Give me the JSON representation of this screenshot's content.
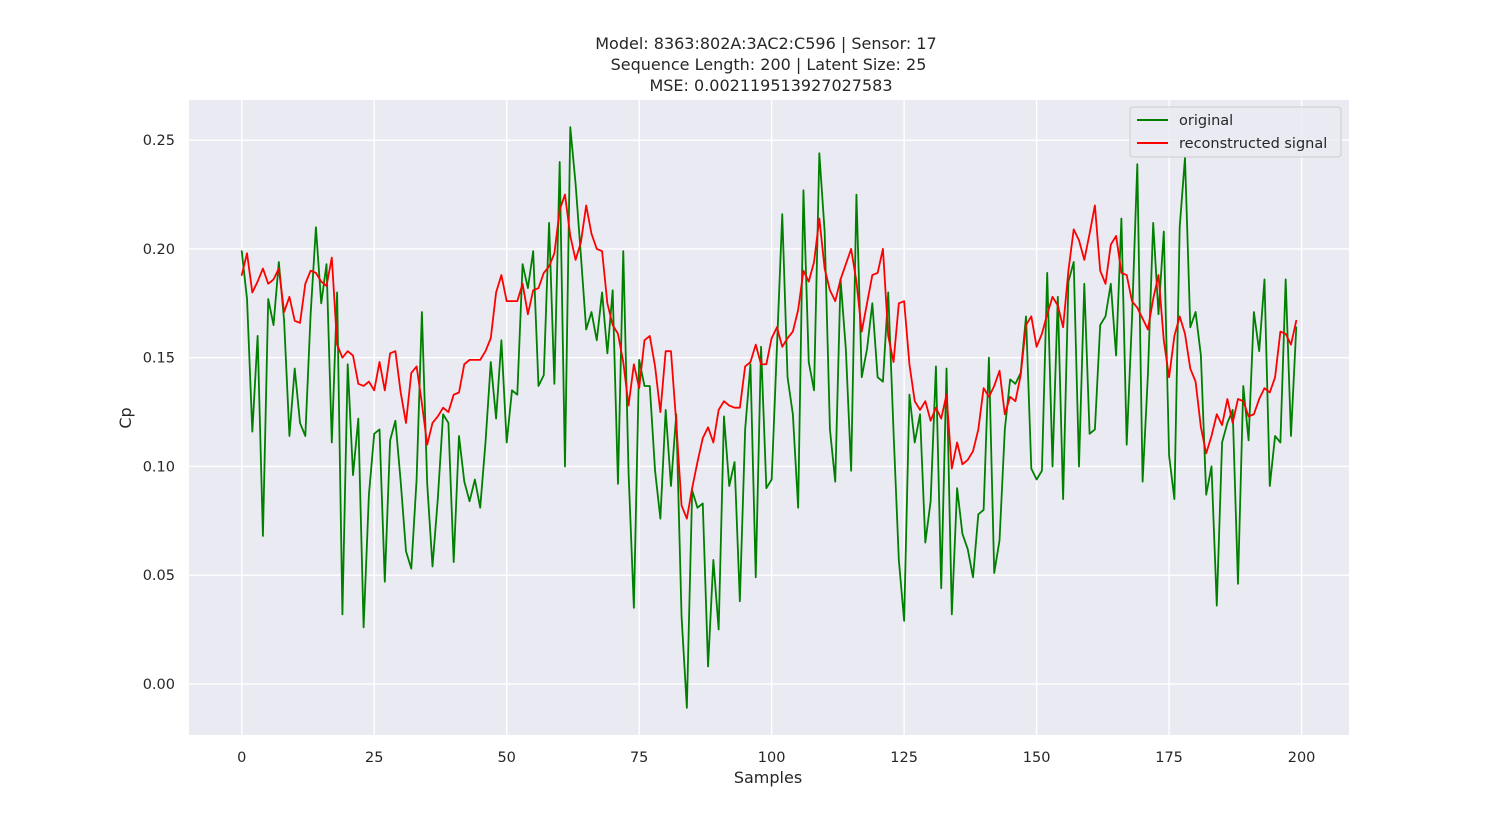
{
  "chart_data": {
    "type": "line",
    "title_lines": [
      "Model: 8363:802A:3AC2:C596 | Sensor: 17",
      "Sequence Length: 200 | Latent Size: 25",
      "MSE: 0.002119513927027583"
    ],
    "xlabel": "Samples",
    "ylabel": "Cp",
    "xlim": [
      -9.95,
      208.95
    ],
    "ylim": [
      -0.0235,
      0.2685
    ],
    "xticks": [
      0,
      25,
      50,
      75,
      100,
      125,
      150,
      175,
      200
    ],
    "xtick_labels": [
      "0",
      "25",
      "50",
      "75",
      "100",
      "125",
      "150",
      "175",
      "200"
    ],
    "yticks": [
      0.0,
      0.05,
      0.1,
      0.15,
      0.2,
      0.25
    ],
    "ytick_labels": [
      "0.00",
      "0.05",
      "0.10",
      "0.15",
      "0.20",
      "0.25"
    ],
    "grid": true,
    "background": "#eaeaf2",
    "legend_position": "top-right",
    "series": [
      {
        "name": "original",
        "color": "#008000",
        "values": [
          0.199,
          0.177,
          0.116,
          0.16,
          0.068,
          0.177,
          0.165,
          0.194,
          0.167,
          0.114,
          0.145,
          0.12,
          0.114,
          0.17,
          0.21,
          0.175,
          0.193,
          0.111,
          0.18,
          0.032,
          0.147,
          0.096,
          0.122,
          0.026,
          0.087,
          0.115,
          0.117,
          0.047,
          0.112,
          0.121,
          0.093,
          0.061,
          0.053,
          0.094,
          0.171,
          0.092,
          0.054,
          0.085,
          0.124,
          0.12,
          0.056,
          0.114,
          0.093,
          0.084,
          0.094,
          0.081,
          0.111,
          0.148,
          0.122,
          0.158,
          0.111,
          0.135,
          0.133,
          0.193,
          0.182,
          0.199,
          0.137,
          0.142,
          0.212,
          0.138,
          0.24,
          0.1,
          0.256,
          0.23,
          0.197,
          0.163,
          0.171,
          0.158,
          0.18,
          0.152,
          0.181,
          0.092,
          0.199,
          0.097,
          0.035,
          0.149,
          0.137,
          0.137,
          0.098,
          0.076,
          0.126,
          0.091,
          0.124,
          0.031,
          -0.011,
          0.089,
          0.081,
          0.083,
          0.008,
          0.057,
          0.025,
          0.123,
          0.091,
          0.102,
          0.038,
          0.117,
          0.147,
          0.049,
          0.155,
          0.09,
          0.094,
          0.155,
          0.216,
          0.141,
          0.124,
          0.081,
          0.227,
          0.148,
          0.135,
          0.244,
          0.208,
          0.117,
          0.093,
          0.186,
          0.154,
          0.098,
          0.225,
          0.141,
          0.154,
          0.175,
          0.141,
          0.139,
          0.18,
          0.116,
          0.057,
          0.029,
          0.133,
          0.111,
          0.124,
          0.065,
          0.084,
          0.146,
          0.044,
          0.145,
          0.032,
          0.09,
          0.069,
          0.062,
          0.049,
          0.078,
          0.08,
          0.15,
          0.051,
          0.066,
          0.117,
          0.14,
          0.138,
          0.143,
          0.169,
          0.099,
          0.094,
          0.098,
          0.189,
          0.1,
          0.178,
          0.085,
          0.185,
          0.194,
          0.1,
          0.184,
          0.115,
          0.117,
          0.165,
          0.169,
          0.184,
          0.151,
          0.214,
          0.11,
          0.168,
          0.239,
          0.093,
          0.142,
          0.212,
          0.17,
          0.208,
          0.105,
          0.085,
          0.21,
          0.242,
          0.164,
          0.171,
          0.151,
          0.087,
          0.1,
          0.036,
          0.111,
          0.12,
          0.126,
          0.046,
          0.137,
          0.112,
          0.171,
          0.153,
          0.186,
          0.091,
          0.114,
          0.111,
          0.186,
          0.114,
          0.164
        ]
      },
      {
        "name": "reconstructed signal",
        "color": "#ff0000",
        "values": [
          0.188,
          0.198,
          0.18,
          0.185,
          0.191,
          0.184,
          0.186,
          0.191,
          0.171,
          0.178,
          0.167,
          0.166,
          0.184,
          0.19,
          0.189,
          0.185,
          0.183,
          0.196,
          0.156,
          0.15,
          0.153,
          0.151,
          0.138,
          0.137,
          0.139,
          0.135,
          0.148,
          0.135,
          0.152,
          0.153,
          0.134,
          0.12,
          0.143,
          0.146,
          0.129,
          0.11,
          0.12,
          0.123,
          0.127,
          0.125,
          0.133,
          0.134,
          0.147,
          0.149,
          0.149,
          0.149,
          0.153,
          0.159,
          0.18,
          0.188,
          0.176,
          0.176,
          0.176,
          0.184,
          0.17,
          0.181,
          0.182,
          0.189,
          0.192,
          0.198,
          0.218,
          0.225,
          0.206,
          0.195,
          0.203,
          0.22,
          0.207,
          0.2,
          0.199,
          0.175,
          0.165,
          0.161,
          0.148,
          0.128,
          0.147,
          0.136,
          0.158,
          0.16,
          0.146,
          0.125,
          0.153,
          0.153,
          0.12,
          0.082,
          0.076,
          0.09,
          0.102,
          0.113,
          0.118,
          0.111,
          0.126,
          0.13,
          0.128,
          0.127,
          0.127,
          0.146,
          0.148,
          0.156,
          0.147,
          0.147,
          0.159,
          0.164,
          0.155,
          0.159,
          0.162,
          0.172,
          0.19,
          0.185,
          0.194,
          0.214,
          0.191,
          0.181,
          0.176,
          0.186,
          0.193,
          0.2,
          0.185,
          0.162,
          0.175,
          0.188,
          0.189,
          0.2,
          0.16,
          0.148,
          0.175,
          0.176,
          0.147,
          0.13,
          0.126,
          0.13,
          0.121,
          0.127,
          0.122,
          0.133,
          0.099,
          0.111,
          0.101,
          0.103,
          0.107,
          0.117,
          0.136,
          0.132,
          0.137,
          0.144,
          0.124,
          0.132,
          0.13,
          0.142,
          0.165,
          0.169,
          0.155,
          0.161,
          0.17,
          0.178,
          0.174,
          0.164,
          0.19,
          0.209,
          0.204,
          0.195,
          0.207,
          0.22,
          0.19,
          0.184,
          0.202,
          0.206,
          0.189,
          0.188,
          0.176,
          0.173,
          0.168,
          0.163,
          0.177,
          0.188,
          0.158,
          0.141,
          0.16,
          0.169,
          0.161,
          0.145,
          0.139,
          0.118,
          0.106,
          0.114,
          0.124,
          0.119,
          0.131,
          0.12,
          0.131,
          0.13,
          0.123,
          0.124,
          0.131,
          0.136,
          0.134,
          0.141,
          0.162,
          0.161,
          0.156,
          0.167
        ]
      }
    ]
  }
}
